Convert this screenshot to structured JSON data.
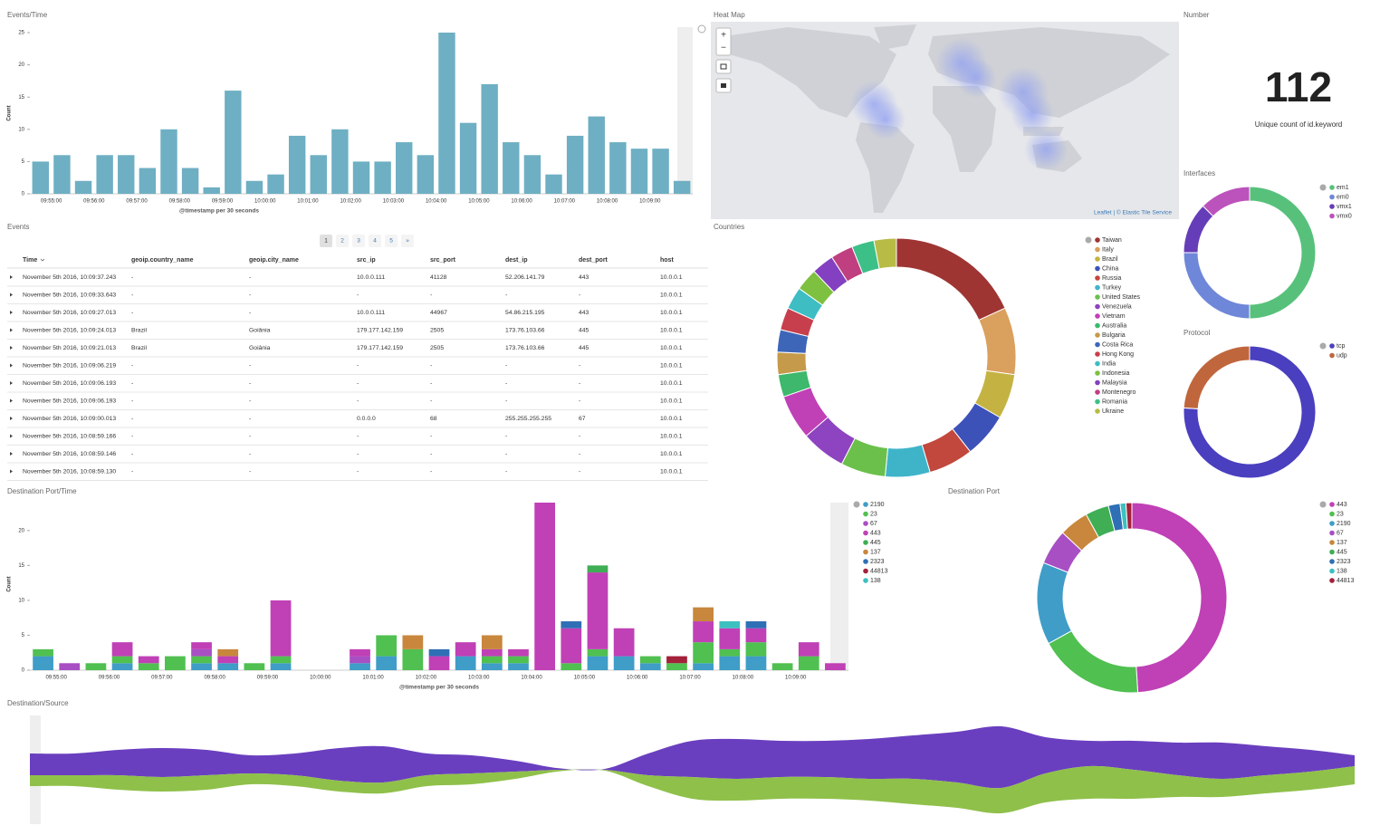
{
  "chart_data": [
    {
      "type": "bar",
      "title": "Events/Time",
      "y_label": "Count",
      "x_label": "@timestamp per 30 seconds",
      "color": "#6eafc3",
      "categories": [
        null,
        "09:55:00",
        null,
        "09:56:00",
        null,
        "09:57:00",
        null,
        "09:58:00",
        null,
        "09:59:00",
        null,
        "10:00:00",
        null,
        "10:01:00",
        null,
        "10:02:00",
        null,
        "10:03:00",
        null,
        "10:04:00",
        null,
        "10:05:00",
        null,
        "10:06:00",
        null,
        "10:07:00",
        null,
        "10:08:00",
        null,
        "10:09:00",
        null
      ],
      "values": [
        5,
        6,
        2,
        6,
        6,
        4,
        10,
        4,
        1,
        16,
        2,
        3,
        9,
        6,
        10,
        5,
        5,
        8,
        6,
        25,
        11,
        17,
        8,
        6,
        3,
        9,
        12,
        8,
        7,
        7,
        2
      ],
      "ylim": [
        0,
        25
      ],
      "yticks": [
        0,
        5,
        10,
        15,
        20,
        25
      ]
    },
    {
      "type": "pie",
      "title": "Countries",
      "donut": true,
      "categories": [
        "Taiwan",
        "Italy",
        "Brazil",
        "China",
        "Russia",
        "Turkey",
        "United States",
        "Venezuela",
        "Vietnam",
        "Australia",
        "Bulgaria",
        "Costa Rica",
        "Hong Kong",
        "India",
        "Indonesia",
        "Malaysia",
        "Montenegro",
        "Romania",
        "Ukraine"
      ],
      "values": [
        6,
        3,
        2,
        2,
        2,
        2,
        2,
        2,
        2,
        1,
        1,
        1,
        1,
        1,
        1,
        1,
        1,
        1,
        1
      ],
      "colors": [
        "#9e3533",
        "#daa05d",
        "#c4b343",
        "#3d52b9",
        "#c2473c",
        "#3fb4c9",
        "#6bc04b",
        "#8e43c0",
        "#c040b6",
        "#3db86c",
        "#c59a4a",
        "#3d66b9",
        "#c73f4d",
        "#3ebdc3",
        "#7ec040",
        "#8340c0",
        "#c03f80",
        "#3dc088",
        "#b8bb45"
      ]
    },
    {
      "type": "pie",
      "title": "Interfaces",
      "donut": true,
      "categories": [
        "em1",
        "em0",
        "vmx1",
        "vmx0"
      ],
      "values": [
        4,
        2,
        1,
        1
      ],
      "colors": [
        "#57c17b",
        "#6f87d8",
        "#663db8",
        "#bc52bc"
      ]
    },
    {
      "type": "pie",
      "title": "Protocol",
      "donut": true,
      "categories": [
        "tcp",
        "udp"
      ],
      "values": [
        76,
        24
      ],
      "colors": [
        "#4a3fbf",
        "#c0663c"
      ]
    },
    {
      "type": "bar",
      "stacked": true,
      "title": "Destination Port/Time",
      "y_label": "Count",
      "x_label": "@timestamp per 30 seconds",
      "categories": [
        null,
        "09:55:00",
        null,
        "09:56:00",
        null,
        "09:57:00",
        null,
        "09:58:00",
        null,
        "09:59:00",
        null,
        "10:00:00",
        null,
        "10:01:00",
        null,
        "10:02:00",
        null,
        "10:03:00",
        null,
        "10:04:00",
        null,
        "10:05:00",
        null,
        "10:06:00",
        null,
        "10:07:00",
        null,
        "10:08:00",
        null,
        "10:09:00",
        null
      ],
      "series": [
        {
          "name": "2190",
          "color": "#3f9dc8",
          "values": [
            2,
            0,
            0,
            1,
            0,
            0,
            1,
            1,
            0,
            1,
            0,
            0,
            1,
            2,
            0,
            0,
            2,
            1,
            1,
            0,
            0,
            2,
            2,
            1,
            0,
            1,
            2,
            2,
            0,
            0,
            0
          ]
        },
        {
          "name": "23",
          "color": "#50c050",
          "values": [
            1,
            0,
            1,
            1,
            1,
            2,
            1,
            0,
            1,
            1,
            0,
            0,
            0,
            3,
            3,
            0,
            0,
            1,
            1,
            0,
            1,
            1,
            0,
            1,
            1,
            3,
            1,
            2,
            1,
            2,
            0
          ]
        },
        {
          "name": "67",
          "color": "#a84fc4",
          "values": [
            0,
            1,
            0,
            0,
            0,
            0,
            1,
            0,
            0,
            0,
            0,
            0,
            1,
            0,
            0,
            0,
            0,
            0,
            0,
            0,
            0,
            0,
            0,
            0,
            0,
            0,
            0,
            0,
            0,
            0,
            0
          ]
        },
        {
          "name": "443",
          "color": "#c040b6",
          "values": [
            0,
            0,
            0,
            2,
            1,
            0,
            1,
            1,
            0,
            8,
            0,
            0,
            1,
            0,
            0,
            2,
            2,
            1,
            1,
            24,
            5,
            11,
            4,
            0,
            0,
            3,
            3,
            2,
            0,
            2,
            1
          ]
        },
        {
          "name": "445",
          "color": "#3fae55",
          "values": [
            0,
            0,
            0,
            0,
            0,
            0,
            0,
            0,
            0,
            0,
            0,
            0,
            0,
            0,
            0,
            0,
            0,
            0,
            0,
            0,
            0,
            1,
            0,
            0,
            0,
            0,
            0,
            0,
            0,
            0,
            0
          ]
        },
        {
          "name": "137",
          "color": "#c8873c",
          "values": [
            0,
            0,
            0,
            0,
            0,
            0,
            0,
            1,
            0,
            0,
            0,
            0,
            0,
            0,
            2,
            0,
            0,
            2,
            0,
            0,
            0,
            0,
            0,
            0,
            0,
            2,
            0,
            0,
            0,
            0,
            0
          ]
        },
        {
          "name": "2323",
          "color": "#2e6fb5",
          "values": [
            0,
            0,
            0,
            0,
            0,
            0,
            0,
            0,
            0,
            0,
            0,
            0,
            0,
            0,
            0,
            1,
            0,
            0,
            0,
            0,
            1,
            0,
            0,
            0,
            0,
            0,
            0,
            1,
            0,
            0,
            0
          ]
        },
        {
          "name": "44813",
          "color": "#a3213a",
          "values": [
            0,
            0,
            0,
            0,
            0,
            0,
            0,
            0,
            0,
            0,
            0,
            0,
            0,
            0,
            0,
            0,
            0,
            0,
            0,
            0,
            0,
            0,
            0,
            0,
            1,
            0,
            0,
            0,
            0,
            0,
            0
          ]
        },
        {
          "name": "138",
          "color": "#3cc0c0",
          "values": [
            0,
            0,
            0,
            0,
            0,
            0,
            0,
            0,
            0,
            0,
            0,
            0,
            0,
            0,
            0,
            0,
            0,
            0,
            0,
            0,
            0,
            0,
            0,
            0,
            0,
            0,
            1,
            0,
            0,
            0,
            0
          ]
        }
      ],
      "ylim": [
        0,
        24
      ],
      "yticks": [
        0,
        5,
        10,
        15,
        20
      ]
    },
    {
      "type": "pie",
      "title": "Destination Port",
      "donut": true,
      "categories": [
        "443",
        "23",
        "2190",
        "67",
        "137",
        "445",
        "2323",
        "138",
        "44813"
      ],
      "values": [
        49,
        18,
        14,
        6,
        5,
        4,
        2,
        1,
        1
      ],
      "colors": [
        "#c040b6",
        "#50c050",
        "#3f9dc8",
        "#a84fc4",
        "#c8873c",
        "#3fae55",
        "#2e6fb5",
        "#3cc0c0",
        "#a3213a"
      ]
    },
    {
      "type": "stream",
      "title": "Destination/Source",
      "series": [
        {
          "color": "#6a3fbf",
          "values": [
            3,
            3,
            3.5,
            4,
            3.5,
            2.5,
            3,
            4.5,
            5,
            3,
            2.5,
            1.5,
            0.2,
            0.1,
            3,
            5,
            5.5,
            5,
            5,
            5.5,
            6,
            7,
            8.5,
            5,
            3.5,
            4,
            4.5,
            5,
            4,
            3,
            1.5
          ]
        },
        {
          "color": "#8fc04a",
          "values": [
            1.5,
            1.5,
            2,
            2,
            2,
            1.5,
            1.5,
            1.5,
            1.5,
            1.5,
            1.5,
            1,
            0.2,
            0.1,
            1.5,
            3,
            3,
            3,
            3,
            3,
            3.5,
            3.5,
            3.5,
            4,
            4.5,
            4,
            3,
            2.5,
            2.5,
            2.5,
            2.5
          ]
        }
      ]
    }
  ],
  "heat_map": {
    "title": "Heat Map",
    "zoom_in": "+",
    "zoom_out": "−",
    "attribution": "Leaflet | © Elastic Tile Service"
  },
  "number": {
    "title": "Number",
    "value": 112,
    "label": "Unique count of id.keyword"
  },
  "events_table": {
    "title": "Events",
    "pages": [
      "1",
      "2",
      "3",
      "4",
      "5",
      "»"
    ],
    "columns": [
      "Time",
      "geoip.country_name",
      "geoip.city_name",
      "src_ip",
      "src_port",
      "dest_ip",
      "dest_port",
      "host"
    ],
    "rows": [
      [
        "November 5th 2016, 10:09:37.243",
        "-",
        "-",
        "10.0.0.111",
        "41128",
        "52.206.141.79",
        "443",
        "10.0.0.1"
      ],
      [
        "November 5th 2016, 10:09:33.643",
        "-",
        "-",
        "-",
        "-",
        "-",
        "-",
        "10.0.0.1"
      ],
      [
        "November 5th 2016, 10:09:27.013",
        "-",
        "-",
        "10.0.0.111",
        "44967",
        "54.86.215.195",
        "443",
        "10.0.0.1"
      ],
      [
        "November 5th 2016, 10:09:24.013",
        "Brazil",
        "Goiânia",
        "179.177.142.159",
        "2505",
        "173.76.103.66",
        "445",
        "10.0.0.1"
      ],
      [
        "November 5th 2016, 10:09:21.013",
        "Brazil",
        "Goiânia",
        "179.177.142.159",
        "2505",
        "173.76.103.66",
        "445",
        "10.0.0.1"
      ],
      [
        "November 5th 2016, 10:09:06.219",
        "-",
        "-",
        "-",
        "-",
        "-",
        "-",
        "10.0.0.1"
      ],
      [
        "November 5th 2016, 10:09:06.193",
        "-",
        "-",
        "-",
        "-",
        "-",
        "-",
        "10.0.0.1"
      ],
      [
        "November 5th 2016, 10:09:06.193",
        "-",
        "-",
        "-",
        "-",
        "-",
        "-",
        "10.0.0.1"
      ],
      [
        "November 5th 2016, 10:09:00.013",
        "-",
        "-",
        "0.0.0.0",
        "68",
        "255.255.255.255",
        "67",
        "10.0.0.1"
      ],
      [
        "November 5th 2016, 10:08:59.166",
        "-",
        "-",
        "-",
        "-",
        "-",
        "-",
        "10.0.0.1"
      ],
      [
        "November 5th 2016, 10:08:59.146",
        "-",
        "-",
        "-",
        "-",
        "-",
        "-",
        "10.0.0.1"
      ],
      [
        "November 5th 2016, 10:08:59.130",
        "-",
        "-",
        "-",
        "-",
        "-",
        "-",
        "10.0.0.1"
      ]
    ]
  }
}
